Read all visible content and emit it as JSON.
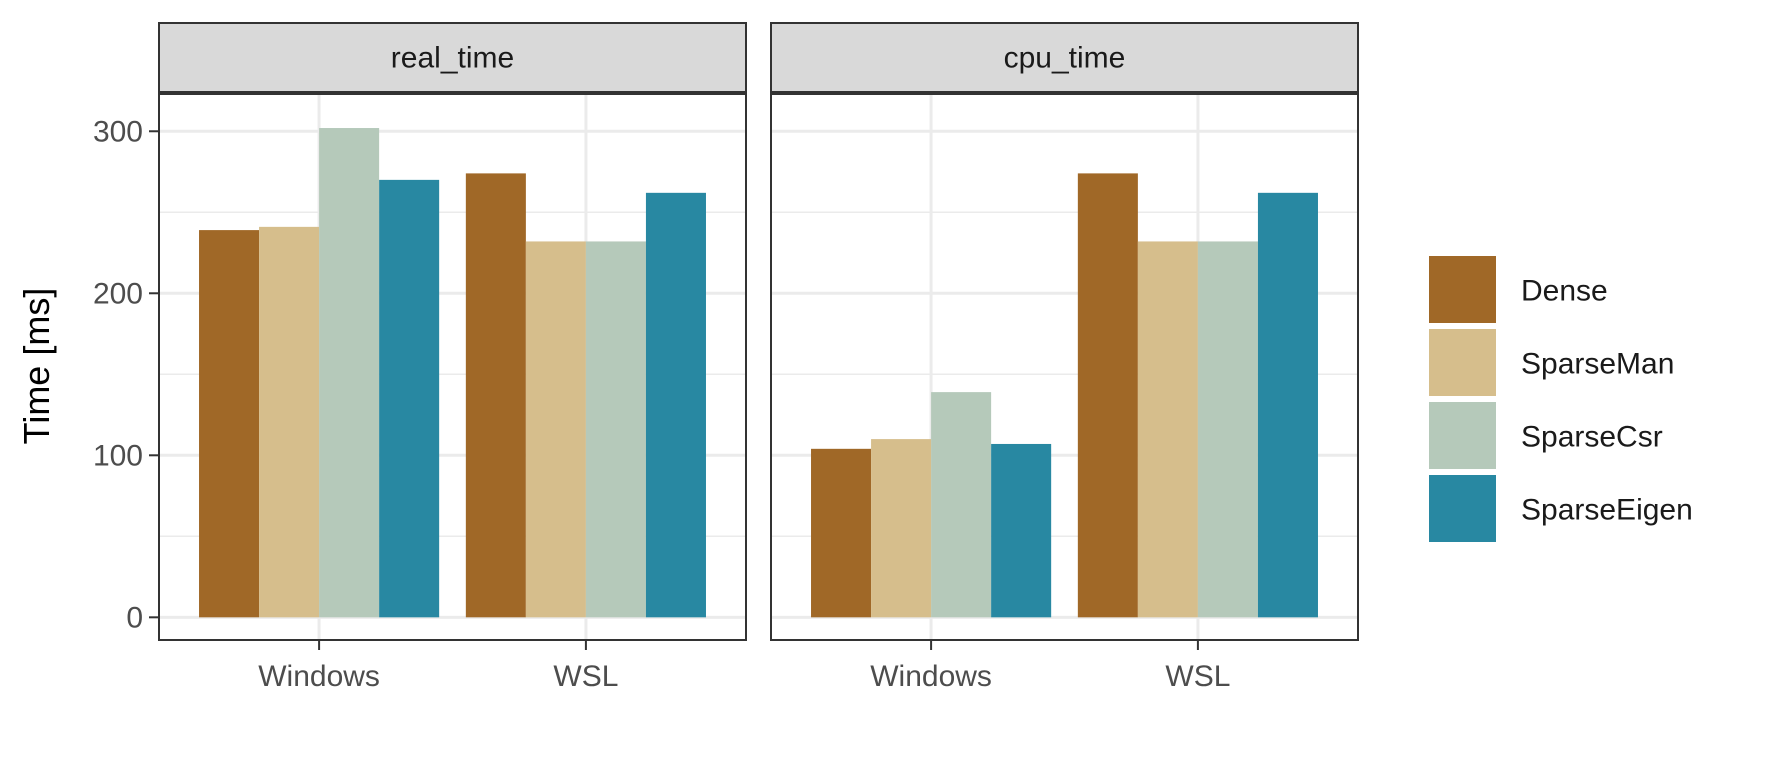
{
  "chart_data": {
    "type": "bar",
    "ylabel": "Time [ms]",
    "xlabel": "",
    "ylim": [
      -14,
      323
    ],
    "yticks": [
      0,
      100,
      200,
      300
    ],
    "categories": [
      "Windows",
      "WSL"
    ],
    "grid": true,
    "legend_position": "right",
    "colors": {
      "Dense": "#A06827",
      "SparseMan": "#D6BE8C",
      "SparseCsr": "#B5C9BA",
      "SparseEigen": "#2888A2"
    },
    "series_names": [
      "Dense",
      "SparseMan",
      "SparseCsr",
      "SparseEigen"
    ],
    "panels": [
      {
        "label": "real_time",
        "series": [
          {
            "name": "Dense",
            "values": [
              239,
              274
            ]
          },
          {
            "name": "SparseMan",
            "values": [
              241,
              232
            ]
          },
          {
            "name": "SparseCsr",
            "values": [
              302,
              232
            ]
          },
          {
            "name": "SparseEigen",
            "values": [
              270,
              262
            ]
          }
        ]
      },
      {
        "label": "cpu_time",
        "series": [
          {
            "name": "Dense",
            "values": [
              104,
              274
            ]
          },
          {
            "name": "SparseMan",
            "values": [
              110,
              232
            ]
          },
          {
            "name": "SparseCsr",
            "values": [
              139,
              232
            ]
          },
          {
            "name": "SparseEigen",
            "values": [
              107,
              262
            ]
          }
        ]
      }
    ]
  }
}
